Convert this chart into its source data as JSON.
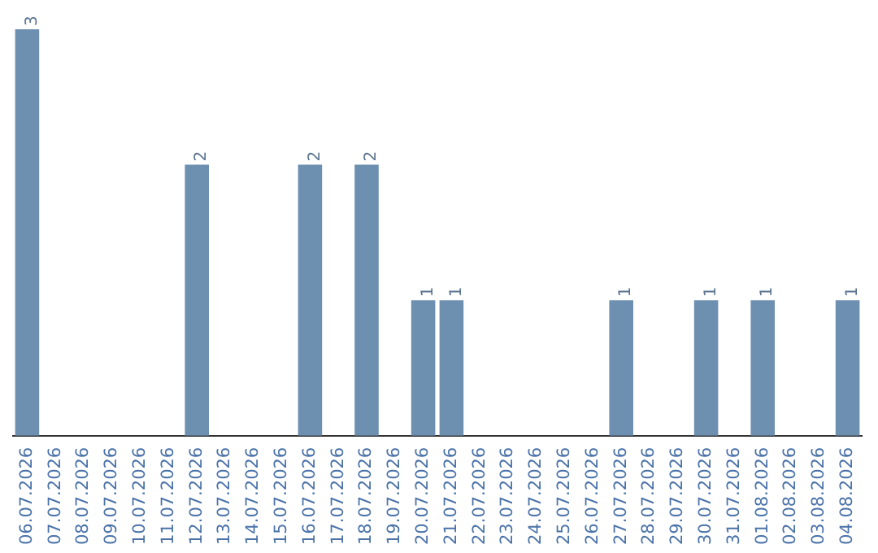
{
  "chart_data": {
    "type": "bar",
    "categories": [
      "06.07.2026",
      "07.07.2026",
      "08.07.2026",
      "09.07.2026",
      "10.07.2026",
      "11.07.2026",
      "12.07.2026",
      "13.07.2026",
      "14.07.2026",
      "15.07.2026",
      "16.07.2026",
      "17.07.2026",
      "18.07.2026",
      "19.07.2026",
      "20.07.2026",
      "21.07.2026",
      "22.07.2026",
      "23.07.2026",
      "24.07.2026",
      "25.07.2026",
      "26.07.2026",
      "27.07.2026",
      "28.07.2026",
      "29.07.2026",
      "30.07.2026",
      "31.07.2026",
      "01.08.2026",
      "02.08.2026",
      "03.08.2026",
      "04.08.2026"
    ],
    "values": [
      3,
      0,
      0,
      0,
      0,
      0,
      2,
      0,
      0,
      0,
      2,
      0,
      2,
      0,
      1,
      1,
      0,
      0,
      0,
      0,
      0,
      1,
      0,
      0,
      1,
      0,
      1,
      0,
      0,
      1
    ],
    "value_labels": [
      "3",
      null,
      null,
      null,
      null,
      null,
      "2",
      null,
      null,
      null,
      "2",
      null,
      "2",
      null,
      "1",
      "1",
      null,
      null,
      null,
      null,
      null,
      "1",
      null,
      null,
      "1",
      null,
      "1",
      null,
      null,
      "1"
    ],
    "color": "#6d8fb0",
    "grid": false,
    "legend": false,
    "tick_labels": "x"
  }
}
